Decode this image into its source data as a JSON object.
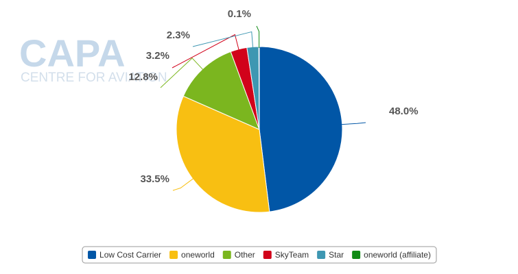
{
  "chart_data": {
    "type": "pie",
    "watermark": {
      "logo": "CAPA",
      "text": "CENTRE FOR AVIATION"
    },
    "categories": [
      "Low Cost Carrier",
      "oneworld",
      "Other",
      "SkyTeam",
      "Star",
      "oneworld (affiliate)"
    ],
    "values": [
      48.0,
      33.5,
      12.8,
      3.2,
      2.3,
      0.1
    ],
    "value_labels": [
      "48.0%",
      "33.5%",
      "12.8%",
      "3.2%",
      "2.3%",
      "0.1%"
    ],
    "colors": [
      "#0156a6",
      "#f8bf12",
      "#7bb61f",
      "#d1021a",
      "#3e97b2",
      "#118b15"
    ],
    "legend": "bottom"
  }
}
